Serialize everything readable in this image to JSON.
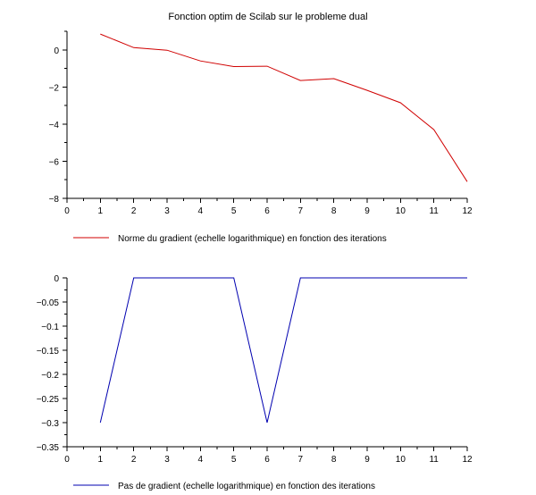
{
  "figure": {
    "title": "Fonction optim de Scilab sur le probleme dual"
  },
  "chart_data": [
    {
      "type": "line",
      "title": "Fonction optim de Scilab sur le probleme dual",
      "xlabel": "",
      "ylabel": "",
      "xlim": [
        0,
        12
      ],
      "ylim": [
        -8,
        1
      ],
      "xticks": [
        0,
        1,
        2,
        3,
        4,
        5,
        6,
        7,
        8,
        9,
        10,
        11,
        12
      ],
      "yticks": [
        0,
        -2,
        -4,
        -6,
        -8
      ],
      "grid": false,
      "legend_position": "bottom",
      "series": [
        {
          "name": "Norme du gradient (echelle logarithmique) en fonction des iterations",
          "color": "#d00000",
          "x": [
            1,
            2,
            3,
            4,
            5,
            6,
            7,
            8,
            9,
            10,
            11,
            12
          ],
          "y": [
            0.85,
            0.12,
            -0.02,
            -0.6,
            -0.9,
            -0.88,
            -1.65,
            -1.55,
            -2.18,
            -2.85,
            -4.3,
            -7.1
          ]
        }
      ]
    },
    {
      "type": "line",
      "title": "",
      "xlabel": "",
      "ylabel": "",
      "xlim": [
        0,
        12
      ],
      "ylim": [
        -0.35,
        0
      ],
      "xticks": [
        0,
        1,
        2,
        3,
        4,
        5,
        6,
        7,
        8,
        9,
        10,
        11,
        12
      ],
      "yticks": [
        0,
        -0.05,
        -0.1,
        -0.15,
        -0.2,
        -0.25,
        -0.3,
        -0.35
      ],
      "grid": false,
      "legend_position": "bottom",
      "series": [
        {
          "name": "Pas de gradient (echelle logarithmique) en fonction des iterations",
          "color": "#0000b0",
          "x": [
            1,
            2,
            3,
            4,
            5,
            6,
            7,
            8,
            9,
            10,
            11,
            12
          ],
          "y": [
            -0.3,
            0,
            0,
            0,
            0,
            -0.3,
            0,
            0,
            0,
            0,
            0,
            0
          ]
        }
      ]
    }
  ]
}
